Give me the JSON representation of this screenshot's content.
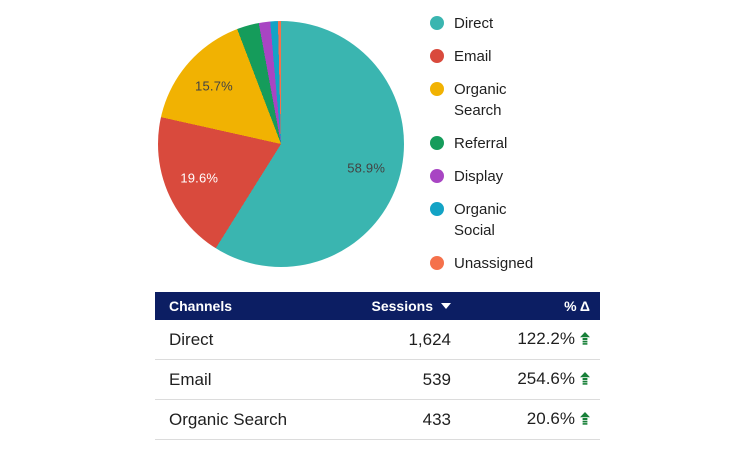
{
  "chart_data": {
    "type": "pie",
    "title": "",
    "categories": [
      "Direct",
      "Email",
      "Organic Search",
      "Referral",
      "Display",
      "Organic Social",
      "Unassigned"
    ],
    "values_percent": [
      58.9,
      19.6,
      15.7,
      2.9,
      1.5,
      1.0,
      0.4
    ],
    "slice_labels": [
      "58.9%",
      "19.6%",
      "15.7%",
      "",
      "",
      "",
      ""
    ],
    "colors": [
      "#3AB5B0",
      "#D94A3D",
      "#F1B202",
      "#159C5B",
      "#A845C3",
      "#13A3C5",
      "#F5714B"
    ],
    "slice_label_colors": [
      "#434343",
      "#FFFFFF",
      "#434343",
      "",
      "",
      "",
      ""
    ],
    "legend_position": "right",
    "start_angle_deg": 0,
    "direction": "clockwise"
  },
  "table": {
    "columns": [
      {
        "label": "Channels",
        "align": "left"
      },
      {
        "label": "Sessions",
        "align": "right",
        "sort_direction": "desc"
      },
      {
        "label": "% Δ",
        "align": "right"
      }
    ],
    "rows": [
      {
        "channel": "Direct",
        "sessions": "1,624",
        "delta": "122.2%",
        "trend": "up"
      },
      {
        "channel": "Email",
        "sessions": "539",
        "delta": "254.6%",
        "trend": "up"
      },
      {
        "channel": "Organic Search",
        "sessions": "433",
        "delta": "20.6%",
        "trend": "up"
      }
    ],
    "styles": {
      "header_bg": "#0C1E63",
      "header_text": "#FFFFFF",
      "body_text": "#1F1F1F",
      "trend_up_color": "#188038",
      "divider": "#DCDCDC"
    }
  }
}
